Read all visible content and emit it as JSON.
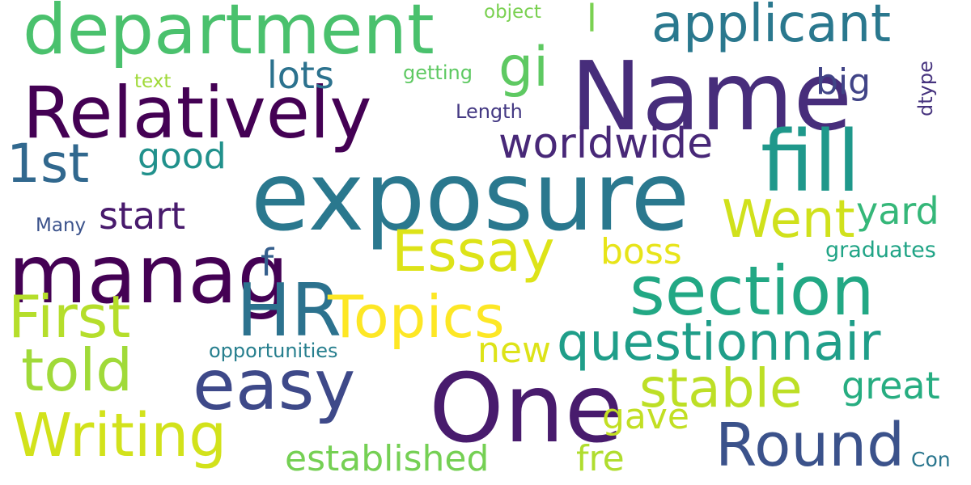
{
  "words": [
    {
      "text": "department",
      "color": "#4ac16d"
    },
    {
      "text": "applicant",
      "color": "#2a788e"
    },
    {
      "text": "object",
      "color": "#7ad151"
    },
    {
      "text": "l",
      "color": "#7ad151"
    },
    {
      "text": "Name",
      "color": "#472d7b"
    },
    {
      "text": "Relatively",
      "color": "#440154"
    },
    {
      "text": "gi",
      "color": "#5ec962"
    },
    {
      "text": "lots",
      "color": "#2c728e"
    },
    {
      "text": "getting",
      "color": "#5ec962"
    },
    {
      "text": "text",
      "color": "#a0da39"
    },
    {
      "text": "big",
      "color": "#414487"
    },
    {
      "text": "dtype",
      "color": "#46337e"
    },
    {
      "text": "Length",
      "color": "#443983"
    },
    {
      "text": "1st",
      "color": "#31688e"
    },
    {
      "text": "worldwide",
      "color": "#482878"
    },
    {
      "text": "fill",
      "color": "#1f988b"
    },
    {
      "text": "good",
      "color": "#21918c"
    },
    {
      "text": "exposure",
      "color": "#2a788e"
    },
    {
      "text": "Went",
      "color": "#d0e11c"
    },
    {
      "text": "yard",
      "color": "#35b779"
    },
    {
      "text": "start",
      "color": "#481a6c"
    },
    {
      "text": "Many",
      "color": "#3b528b"
    },
    {
      "text": "Essay",
      "color": "#dde318"
    },
    {
      "text": "boss",
      "color": "#e7e419"
    },
    {
      "text": "graduates",
      "color": "#20a486"
    },
    {
      "text": "manag",
      "color": "#440154"
    },
    {
      "text": "f",
      "color": "#355f8d"
    },
    {
      "text": "section",
      "color": "#22a884"
    },
    {
      "text": "First",
      "color": "#b5de2b"
    },
    {
      "text": "HR",
      "color": "#2c728e"
    },
    {
      "text": "Topics",
      "color": "#fde725"
    },
    {
      "text": "questionnair",
      "color": "#1f9e89"
    },
    {
      "text": "new",
      "color": "#dde318"
    },
    {
      "text": "opportunities",
      "color": "#277f8e"
    },
    {
      "text": "told",
      "color": "#a0da39"
    },
    {
      "text": "easy",
      "color": "#3e4989"
    },
    {
      "text": "stable",
      "color": "#bddf26"
    },
    {
      "text": "great",
      "color": "#27ad81"
    },
    {
      "text": "One",
      "color": "#481b6d"
    },
    {
      "text": "gave",
      "color": "#c2df23"
    },
    {
      "text": "Writing",
      "color": "#d2e21b"
    },
    {
      "text": "Round",
      "color": "#3b528b"
    },
    {
      "text": "established",
      "color": "#75d054"
    },
    {
      "text": "fre",
      "color": "#b0dd2f"
    },
    {
      "text": "Con",
      "color": "#2a768e"
    }
  ]
}
